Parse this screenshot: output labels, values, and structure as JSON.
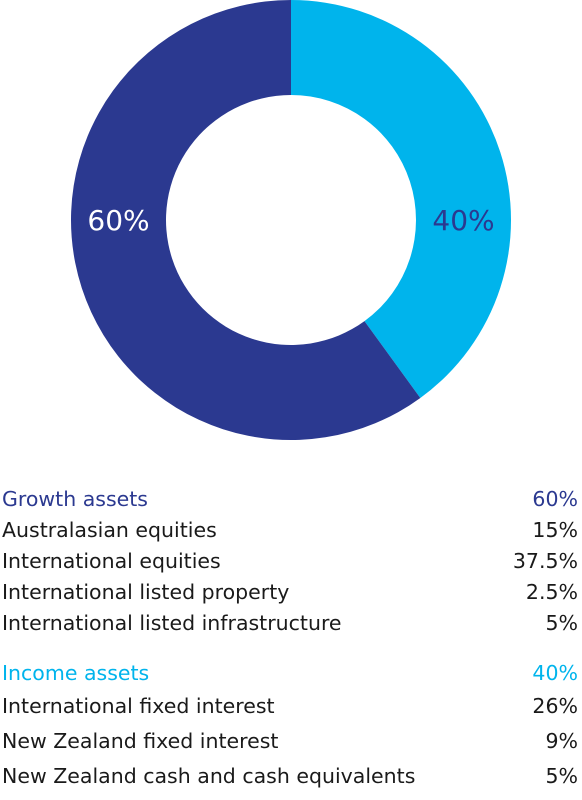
{
  "chart_data": {
    "type": "pie",
    "donut": true,
    "slices": [
      {
        "label": "40%",
        "value": 40,
        "color": "#00b4ec"
      },
      {
        "label": "60%",
        "value": 60,
        "color": "#2b3990"
      }
    ],
    "label_colors": {
      "40%": "#2b3990",
      "60%": "#ffffff"
    }
  },
  "groups": [
    {
      "title": "Growth assets",
      "total": "60%",
      "color": "#2b3990",
      "items": [
        {
          "label": "Australasian equities",
          "value": "15%"
        },
        {
          "label": "International equities",
          "value": "37.5%"
        },
        {
          "label": "International listed property",
          "value": "2.5%"
        },
        {
          "label": "International listed infrastructure",
          "value": "5%"
        }
      ]
    },
    {
      "title": "Income assets",
      "total": "40%",
      "color": "#00b4ec",
      "items": [
        {
          "label": "International fixed interest",
          "value": "26%"
        },
        {
          "label": "New Zealand fixed interest",
          "value": "9%"
        },
        {
          "label": "New Zealand cash and cash equivalents",
          "value": "5%"
        }
      ]
    }
  ]
}
